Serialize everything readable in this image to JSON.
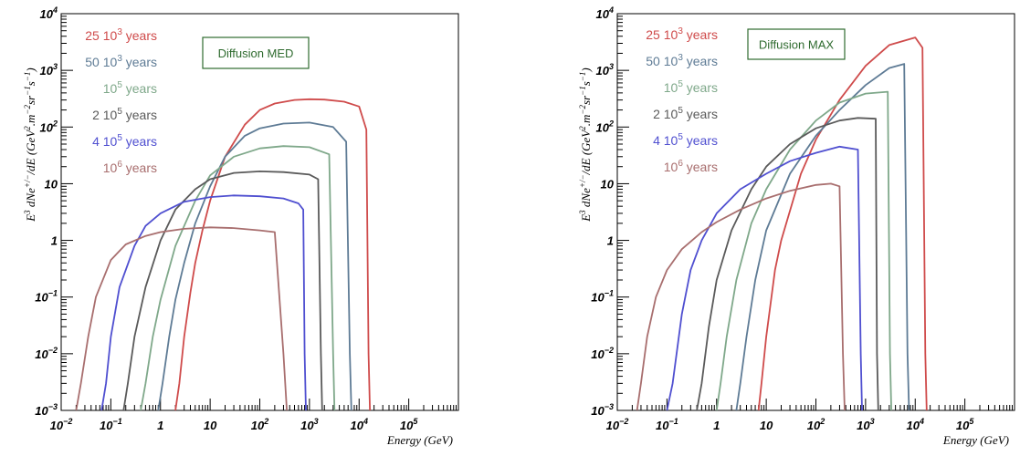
{
  "chart_data": [
    {
      "type": "line",
      "annotation": "Diffusion MED",
      "xlabel": "Energy (GeV)",
      "ylabel": "E^3 dNe^{+/-}/dE (GeV^2.m^-2sr^-1s^-1)",
      "ylabel_parts": {
        "prefix": "E",
        "exp": "3",
        "num": "dNe",
        "num_sup": "+/−",
        "den": "dE",
        "units": "(GeV",
        "units_sup1": "2",
        "units_mid": ".m",
        "units_sup2": "−2",
        "units_mid2": "sr",
        "units_sup3": "−1",
        "units_mid3": "s",
        "units_sup4": "−1",
        "units_end": ")"
      },
      "xscale": "log",
      "yscale": "log",
      "xlim": [
        0.01,
        1000000
      ],
      "ylim": [
        0.001,
        10000
      ],
      "x_ticks": [
        {
          "base": "10",
          "exp": "−2"
        },
        {
          "base": "10",
          "exp": "−1"
        },
        {
          "base": "1",
          "exp": ""
        },
        {
          "base": "10",
          "exp": ""
        },
        {
          "base": "10",
          "exp": "2"
        },
        {
          "base": "10",
          "exp": "3"
        },
        {
          "base": "10",
          "exp": "4"
        },
        {
          "base": "10",
          "exp": "5"
        }
      ],
      "y_ticks": [
        {
          "base": "10",
          "exp": "−3"
        },
        {
          "base": "10",
          "exp": "−2"
        },
        {
          "base": "10",
          "exp": "−1"
        },
        {
          "base": "1",
          "exp": ""
        },
        {
          "base": "10",
          "exp": ""
        },
        {
          "base": "10",
          "exp": "2"
        },
        {
          "base": "10",
          "exp": "3"
        },
        {
          "base": "10",
          "exp": "4"
        }
      ],
      "series": [
        {
          "name": "25 10^3 years",
          "label_pre": "25 10",
          "label_sup": "3",
          "label_post": " years",
          "color": "#cf4b4b",
          "x": [
            2.0,
            2.4,
            3,
            4,
            5,
            7,
            10,
            20,
            50,
            100,
            200,
            500,
            1000,
            2000,
            5000,
            10000,
            14000,
            15500,
            16500
          ],
          "y": [
            0.001,
            0.003,
            0.02,
            0.12,
            0.4,
            1.5,
            5,
            30,
            110,
            200,
            260,
            300,
            310,
            305,
            280,
            230,
            90,
            0.01,
            0.001
          ]
        },
        {
          "name": "50 10^3 years",
          "label_pre": "50 10",
          "label_sup": "3",
          "label_post": " years",
          "color": "#5e7b95",
          "x": [
            0.9,
            1.1,
            1.5,
            2,
            3,
            5,
            10,
            20,
            50,
            100,
            300,
            1000,
            3000,
            5500,
            6500,
            7000
          ],
          "y": [
            0.001,
            0.003,
            0.02,
            0.09,
            0.4,
            2,
            9,
            30,
            70,
            95,
            115,
            120,
            100,
            55,
            0.01,
            0.001
          ]
        },
        {
          "name": "10^5 years",
          "label_pre": "10",
          "label_sup": "5",
          "label_post": " years",
          "color": "#7fa88a",
          "x": [
            0.4,
            0.5,
            0.7,
            1,
            2,
            5,
            10,
            30,
            100,
            300,
            1000,
            2500,
            3000,
            3200
          ],
          "y": [
            0.001,
            0.003,
            0.02,
            0.09,
            0.8,
            5,
            14,
            30,
            42,
            46,
            44,
            33,
            0.01,
            0.001
          ]
        },
        {
          "name": "2 10^5 years",
          "label_pre": "2 10",
          "label_sup": "5",
          "label_post": " years",
          "color": "#5a5a5a",
          "x": [
            0.18,
            0.22,
            0.3,
            0.5,
            1,
            2,
            5,
            10,
            30,
            100,
            300,
            1000,
            1500,
            1700,
            1800
          ],
          "y": [
            0.001,
            0.003,
            0.02,
            0.15,
            1,
            3.5,
            8,
            12,
            15.5,
            16.5,
            16,
            14.5,
            12,
            0.01,
            0.001
          ]
        },
        {
          "name": "4 10^5 years",
          "label_pre": "4 10",
          "label_sup": "5",
          "label_post": " years",
          "color": "#4f4fd0",
          "x": [
            0.065,
            0.08,
            0.1,
            0.15,
            0.3,
            0.5,
            1,
            3,
            10,
            30,
            100,
            300,
            600,
            750,
            800,
            850
          ],
          "y": [
            0.001,
            0.003,
            0.02,
            0.15,
            0.8,
            1.8,
            3,
            4.8,
            5.8,
            6.2,
            6.0,
            5.5,
            4.5,
            3.5,
            0.01,
            0.001
          ]
        },
        {
          "name": "10^6 years",
          "label_pre": "10",
          "label_sup": "6",
          "label_post": " years",
          "color": "#a86e6e",
          "x": [
            0.02,
            0.025,
            0.035,
            0.05,
            0.1,
            0.2,
            0.5,
            1,
            3,
            10,
            30,
            100,
            200,
            300,
            350
          ],
          "y": [
            0.001,
            0.003,
            0.02,
            0.1,
            0.45,
            0.85,
            1.2,
            1.4,
            1.6,
            1.7,
            1.65,
            1.5,
            1.4,
            0.01,
            0.001
          ]
        }
      ]
    },
    {
      "type": "line",
      "annotation": "Diffusion MAX",
      "xlabel": "Energy (GeV)",
      "ylabel": "E^3 dNe^{+/-}/dE (GeV^2.m^-2sr^-1s^-1)",
      "ylabel_parts": {
        "prefix": "E",
        "exp": "3",
        "num": "dNe",
        "num_sup": "+/−",
        "den": "dE",
        "units": "(GeV",
        "units_sup1": "2",
        "units_mid": ".m",
        "units_sup2": "−2",
        "units_mid2": "sr",
        "units_sup3": "−1",
        "units_mid3": "s",
        "units_sup4": "−1",
        "units_end": ")"
      },
      "xscale": "log",
      "yscale": "log",
      "xlim": [
        0.01,
        1000000
      ],
      "ylim": [
        0.001,
        10000
      ],
      "x_ticks": [
        {
          "base": "10",
          "exp": "−2"
        },
        {
          "base": "10",
          "exp": "−1"
        },
        {
          "base": "1",
          "exp": ""
        },
        {
          "base": "10",
          "exp": ""
        },
        {
          "base": "10",
          "exp": "2"
        },
        {
          "base": "10",
          "exp": "3"
        },
        {
          "base": "10",
          "exp": "4"
        },
        {
          "base": "10",
          "exp": "5"
        }
      ],
      "y_ticks": [
        {
          "base": "10",
          "exp": "−3"
        },
        {
          "base": "10",
          "exp": "−2"
        },
        {
          "base": "10",
          "exp": "−1"
        },
        {
          "base": "1",
          "exp": ""
        },
        {
          "base": "10",
          "exp": ""
        },
        {
          "base": "10",
          "exp": "2"
        },
        {
          "base": "10",
          "exp": "3"
        },
        {
          "base": "10",
          "exp": "4"
        }
      ],
      "series": [
        {
          "name": "25 10^3 years",
          "label_pre": "25 10",
          "label_sup": "3",
          "label_post": " years",
          "color": "#cf4b4b",
          "x": [
            7,
            8,
            10,
            15,
            20,
            50,
            100,
            300,
            1000,
            3000,
            10000,
            14000,
            16000,
            17000
          ],
          "y": [
            0.001,
            0.003,
            0.02,
            0.3,
            1,
            15,
            60,
            300,
            1200,
            2800,
            3800,
            2500,
            0.01,
            0.001
          ]
        },
        {
          "name": "50 10^3 years",
          "label_pre": "50 10",
          "label_sup": "3",
          "label_post": " years",
          "color": "#5e7b95",
          "x": [
            2.5,
            3,
            4,
            6,
            10,
            30,
            100,
            300,
            1000,
            3000,
            6000,
            7000,
            7500
          ],
          "y": [
            0.001,
            0.003,
            0.02,
            0.2,
            1.5,
            15,
            70,
            200,
            550,
            1100,
            1300,
            0.01,
            0.001
          ]
        },
        {
          "name": "10^5 years",
          "label_pre": "10",
          "label_sup": "5",
          "label_post": " years",
          "color": "#7fa88a",
          "x": [
            1.0,
            1.2,
            1.6,
            2.5,
            5,
            10,
            30,
            100,
            300,
            1000,
            2800,
            3100,
            3300
          ],
          "y": [
            0.001,
            0.003,
            0.02,
            0.2,
            2,
            8,
            40,
            130,
            270,
            390,
            420,
            0.01,
            0.001
          ]
        },
        {
          "name": "2 10^5 years",
          "label_pre": "2 10",
          "label_sup": "5",
          "label_post": " years",
          "color": "#5a5a5a",
          "x": [
            0.4,
            0.5,
            0.7,
            1,
            2,
            5,
            10,
            30,
            100,
            300,
            700,
            1600,
            1700,
            1800
          ],
          "y": [
            0.001,
            0.003,
            0.03,
            0.2,
            1.5,
            8,
            20,
            50,
            95,
            130,
            145,
            140,
            0.01,
            0.001
          ]
        },
        {
          "name": "4 10^5 years",
          "label_pre": "4 10",
          "label_sup": "5",
          "label_post": " years",
          "color": "#4f4fd0",
          "x": [
            0.1,
            0.13,
            0.2,
            0.3,
            0.5,
            1,
            3,
            10,
            30,
            100,
            300,
            700,
            800,
            850
          ],
          "y": [
            0.001,
            0.003,
            0.05,
            0.3,
            1,
            3,
            8,
            15,
            25,
            35,
            45,
            40,
            0.01,
            0.001
          ]
        },
        {
          "name": "10^6 years",
          "label_pre": "10",
          "label_sup": "6",
          "label_post": " years",
          "color": "#a86e6e",
          "x": [
            0.025,
            0.03,
            0.04,
            0.06,
            0.1,
            0.2,
            0.5,
            1,
            3,
            10,
            30,
            100,
            200,
            300,
            350,
            380
          ],
          "y": [
            0.001,
            0.003,
            0.02,
            0.1,
            0.3,
            0.7,
            1.4,
            2.1,
            3.5,
            5.5,
            7.5,
            9.5,
            10,
            9,
            0.01,
            0.001
          ]
        }
      ]
    }
  ]
}
